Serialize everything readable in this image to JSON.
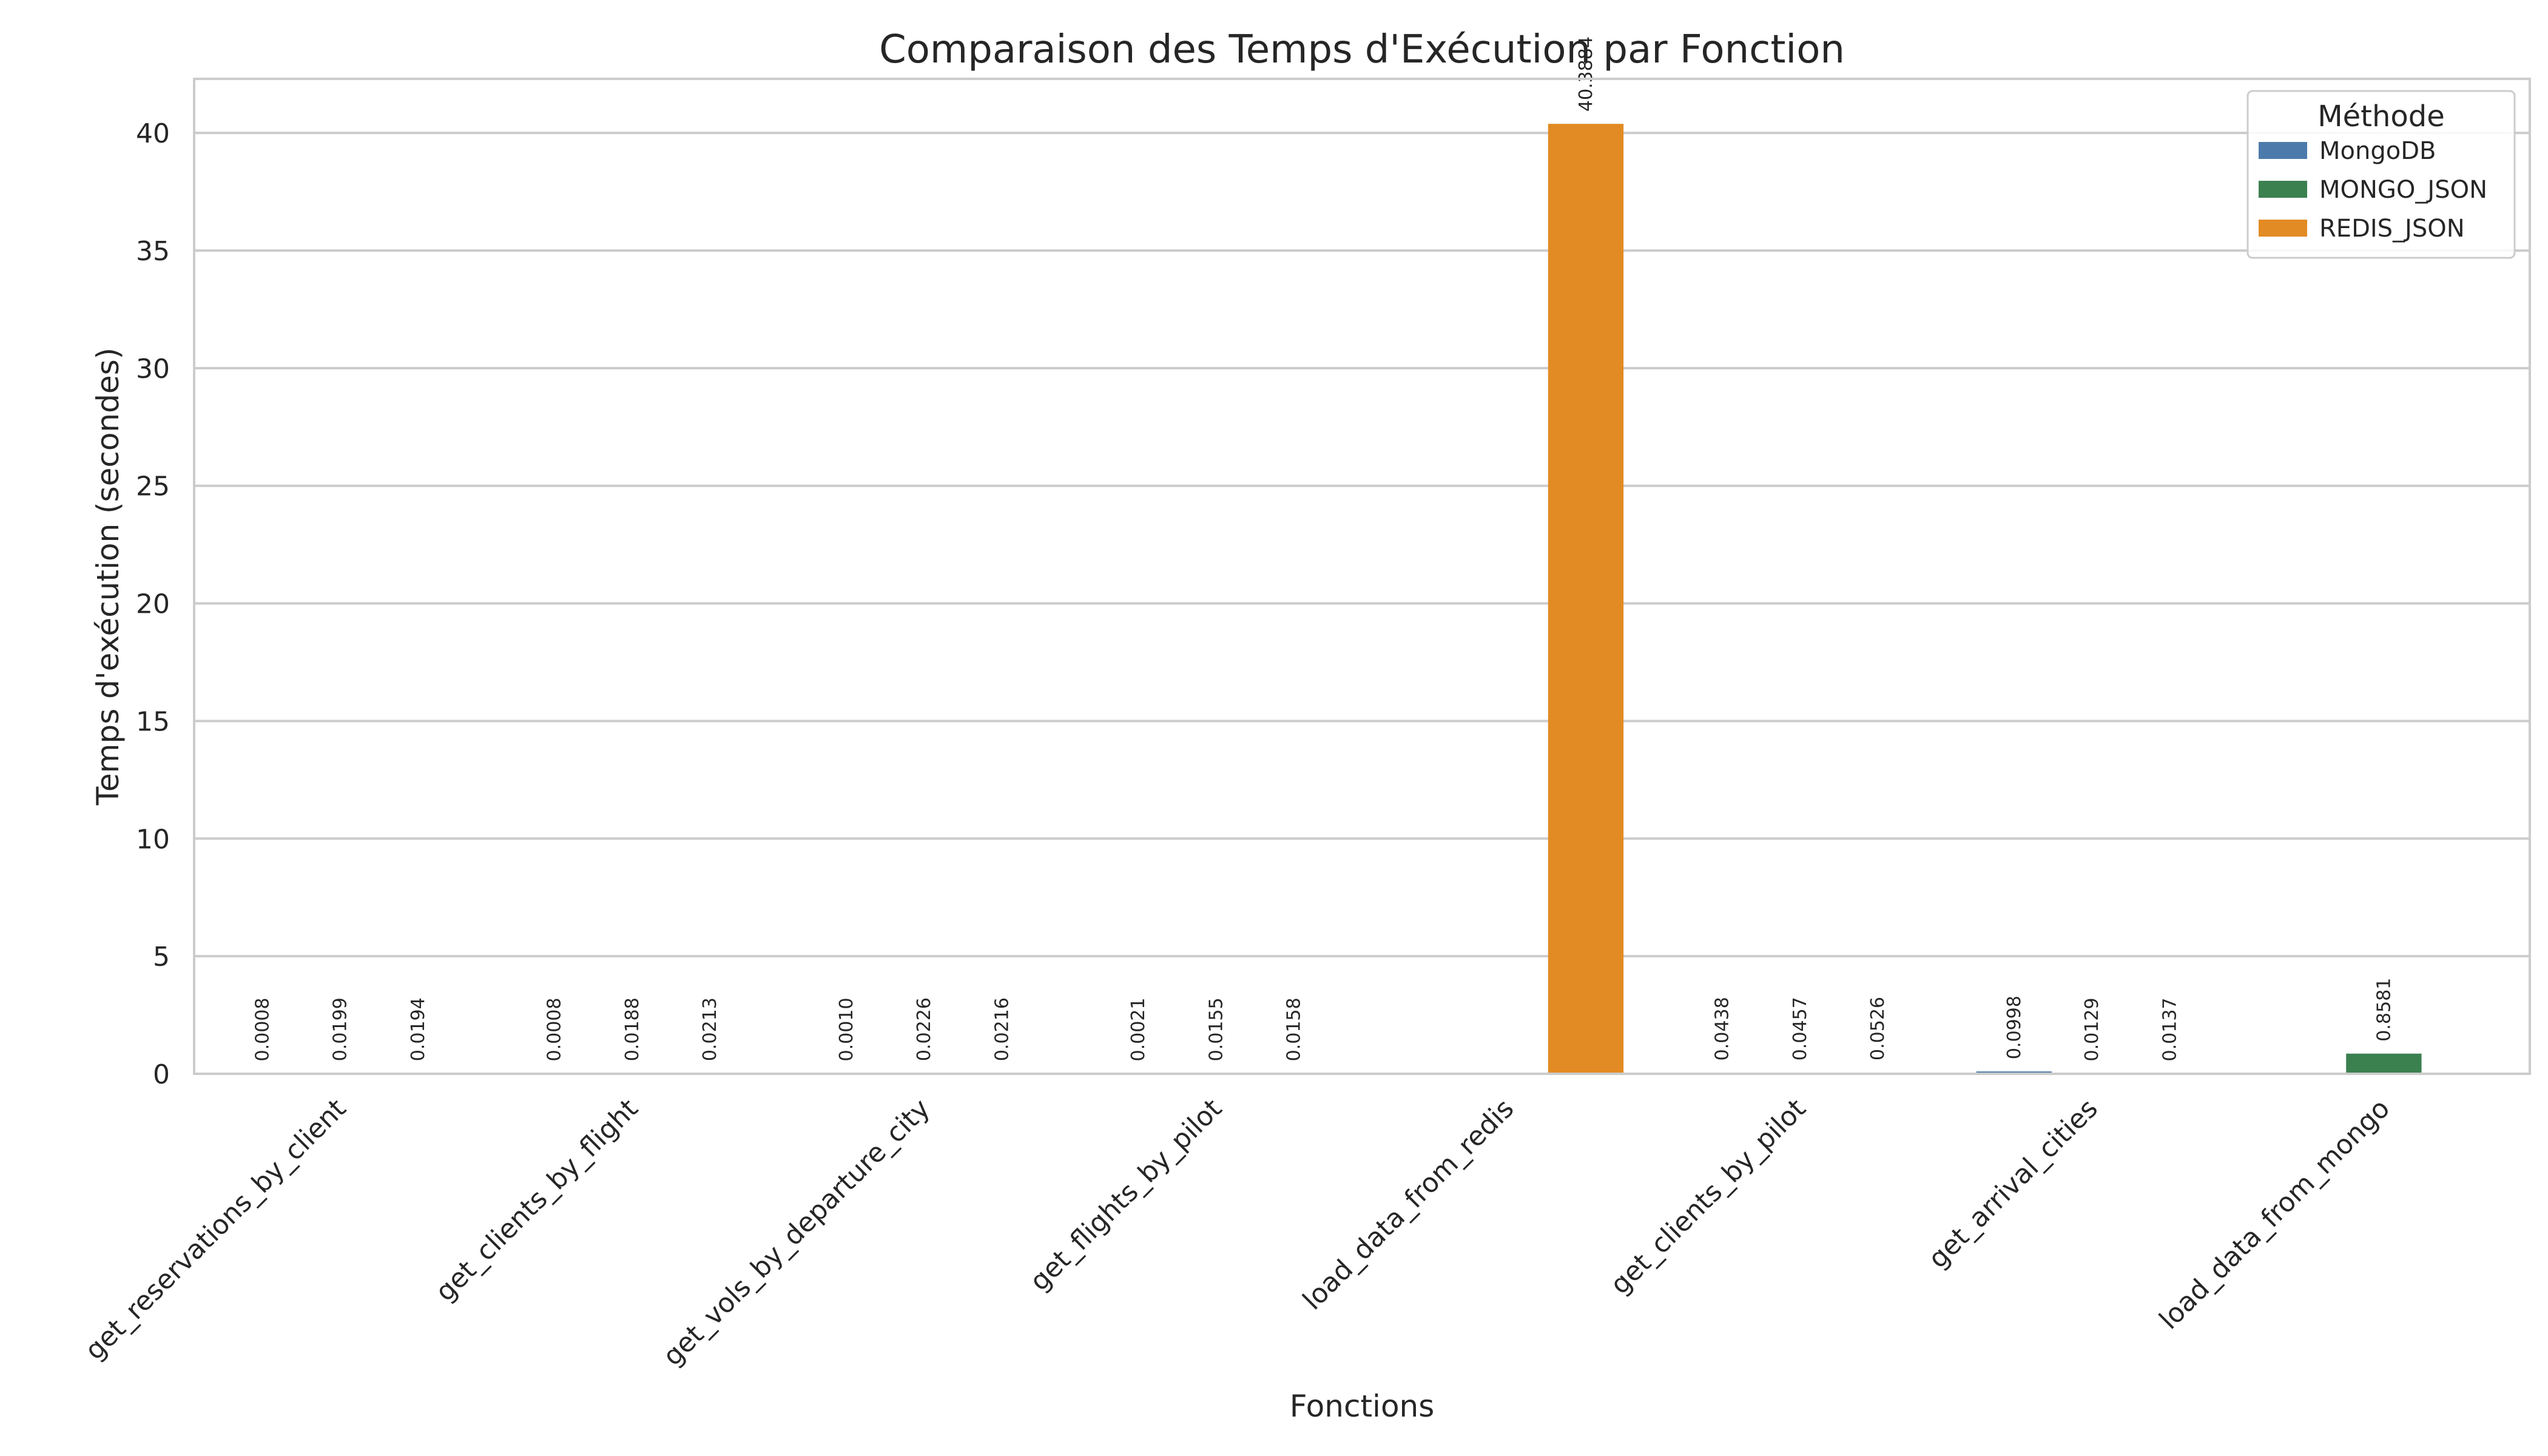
{
  "chart_data": {
    "type": "bar",
    "title": "Comparaison des Temps d'Exécution par Fonction",
    "xlabel": "Fonctions",
    "ylabel": "Temps d'exécution (secondes)",
    "ylim": [
      0,
      42.3
    ],
    "yticks": [
      0,
      5,
      10,
      15,
      20,
      25,
      30,
      35,
      40
    ],
    "grid": "horizontal",
    "legend_position": "top-right",
    "legend_title": "Méthode",
    "categories": [
      "get_reservations_by_client",
      "get_clients_by_flight",
      "get_vols_by_departure_city",
      "get_flights_by_pilot",
      "load_data_from_redis",
      "get_clients_by_pilot",
      "get_arrival_cities",
      "load_data_from_mongo"
    ],
    "series": [
      {
        "name": "MongoDB",
        "color": "#4c7bab",
        "values": [
          0.0008,
          0.0008,
          0.001,
          0.0021,
          null,
          0.0438,
          0.0998,
          null
        ],
        "labels": [
          "0.0008",
          "0.0008",
          "0.0010",
          "0.0021",
          null,
          "0.0438",
          "0.0998",
          null
        ]
      },
      {
        "name": "MONGO_JSON",
        "color": "#3b8150",
        "values": [
          0.0199,
          0.0188,
          0.0226,
          0.0155,
          null,
          0.0457,
          0.0129,
          0.8581
        ],
        "labels": [
          "0.0199",
          "0.0188",
          "0.0226",
          "0.0155",
          null,
          "0.0457",
          "0.0129",
          "0.8581"
        ]
      },
      {
        "name": "REDIS_JSON",
        "color": "#e28b24",
        "values": [
          0.0194,
          0.0213,
          0.0216,
          0.0158,
          40.3884,
          0.0526,
          0.0137,
          null
        ],
        "labels": [
          "0.0194",
          "0.0213",
          "0.0216",
          "0.0158",
          "40.3884",
          "0.0526",
          "0.0137",
          null
        ]
      }
    ]
  }
}
